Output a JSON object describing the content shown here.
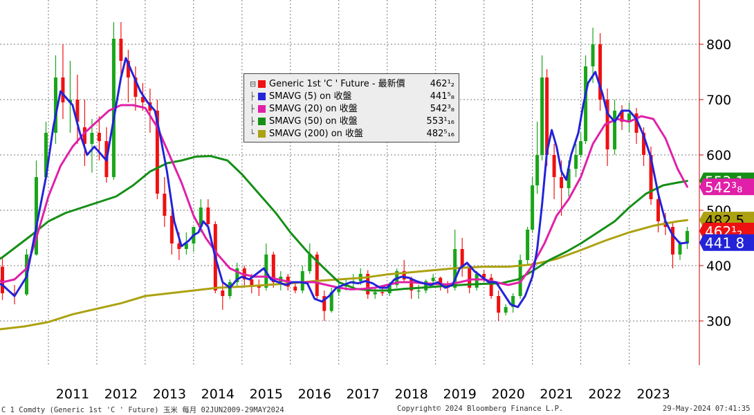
{
  "chart_data": {
    "type": "candlestick",
    "title": "",
    "xlabel": "",
    "ylabel": "",
    "xlim": [
      2010.0,
      2024.45
    ],
    "ylim": [
      220,
      880
    ],
    "x_ticks": [
      "2011",
      "2012",
      "2013",
      "2014",
      "2015",
      "2016",
      "2017",
      "2018",
      "2019",
      "2020",
      "2021",
      "2022",
      "2023"
    ],
    "y_ticks": [
      300,
      400,
      500,
      600,
      700,
      800
    ],
    "grid": true,
    "legend_position": "top-center",
    "colors": {
      "up": "#1aa51a",
      "down": "#ee1111",
      "background": "#ffffff",
      "grid": "#777777"
    },
    "candles": [
      [
        2009.45,
        380,
        395,
        345,
        360
      ],
      [
        2009.75,
        372,
        410,
        350,
        398
      ],
      [
        2010.05,
        398,
        415,
        338,
        350
      ],
      [
        2010.3,
        350,
        365,
        330,
        348
      ],
      [
        2010.55,
        348,
        430,
        345,
        420
      ],
      [
        2010.75,
        420,
        590,
        418,
        560
      ],
      [
        2010.95,
        560,
        660,
        555,
        640
      ],
      [
        2011.15,
        640,
        780,
        620,
        740
      ],
      [
        2011.3,
        740,
        800,
        665,
        695
      ],
      [
        2011.45,
        695,
        770,
        640,
        700
      ],
      [
        2011.6,
        700,
        745,
        620,
        660
      ],
      [
        2011.75,
        650,
        700,
        580,
        620
      ],
      [
        2011.9,
        620,
        665,
        568,
        640
      ],
      [
        2012.05,
        640,
        670,
        590,
        625
      ],
      [
        2012.2,
        625,
        650,
        550,
        560
      ],
      [
        2012.35,
        560,
        840,
        555,
        810
      ],
      [
        2012.5,
        810,
        840,
        745,
        770
      ],
      [
        2012.65,
        770,
        790,
        695,
        740
      ],
      [
        2012.8,
        740,
        760,
        680,
        705
      ],
      [
        2012.95,
        705,
        730,
        680,
        695
      ],
      [
        2013.1,
        695,
        720,
        640,
        680
      ],
      [
        2013.25,
        680,
        700,
        520,
        530
      ],
      [
        2013.4,
        530,
        560,
        470,
        490
      ],
      [
        2013.55,
        490,
        500,
        420,
        440
      ],
      [
        2013.7,
        440,
        460,
        410,
        430
      ],
      [
        2013.85,
        430,
        460,
        420,
        440
      ],
      [
        2014.0,
        440,
        470,
        425,
        470
      ],
      [
        2014.15,
        470,
        520,
        460,
        505
      ],
      [
        2014.3,
        505,
        520,
        465,
        475
      ],
      [
        2014.45,
        475,
        480,
        350,
        355
      ],
      [
        2014.6,
        355,
        370,
        320,
        345
      ],
      [
        2014.75,
        345,
        375,
        340,
        370
      ],
      [
        2014.9,
        370,
        405,
        360,
        395
      ],
      [
        2015.05,
        395,
        400,
        360,
        375
      ],
      [
        2015.2,
        375,
        385,
        350,
        365
      ],
      [
        2015.35,
        365,
        375,
        345,
        360
      ],
      [
        2015.5,
        360,
        440,
        355,
        420
      ],
      [
        2015.65,
        420,
        425,
        360,
        370
      ],
      [
        2015.8,
        370,
        390,
        355,
        380
      ],
      [
        2015.95,
        380,
        385,
        355,
        362
      ],
      [
        2016.1,
        362,
        370,
        350,
        355
      ],
      [
        2016.25,
        355,
        400,
        350,
        390
      ],
      [
        2016.4,
        390,
        440,
        385,
        420
      ],
      [
        2016.55,
        420,
        425,
        340,
        345
      ],
      [
        2016.7,
        345,
        355,
        300,
        318
      ],
      [
        2016.85,
        318,
        360,
        315,
        352
      ],
      [
        2017.0,
        352,
        370,
        345,
        362
      ],
      [
        2017.15,
        362,
        375,
        355,
        368
      ],
      [
        2017.3,
        368,
        385,
        360,
        372
      ],
      [
        2017.45,
        372,
        395,
        365,
        385
      ],
      [
        2017.6,
        385,
        392,
        340,
        348
      ],
      [
        2017.75,
        348,
        360,
        340,
        352
      ],
      [
        2017.9,
        352,
        360,
        345,
        350
      ],
      [
        2018.05,
        350,
        370,
        345,
        365
      ],
      [
        2018.2,
        365,
        395,
        360,
        390
      ],
      [
        2018.35,
        390,
        410,
        370,
        375
      ],
      [
        2018.5,
        375,
        380,
        340,
        355
      ],
      [
        2018.65,
        355,
        365,
        340,
        355
      ],
      [
        2018.8,
        355,
        375,
        350,
        372
      ],
      [
        2018.95,
        372,
        385,
        360,
        378
      ],
      [
        2019.1,
        378,
        380,
        355,
        365
      ],
      [
        2019.25,
        365,
        372,
        350,
        360
      ],
      [
        2019.4,
        360,
        465,
        355,
        430
      ],
      [
        2019.55,
        430,
        450,
        380,
        395
      ],
      [
        2019.7,
        395,
        400,
        350,
        360
      ],
      [
        2019.85,
        360,
        390,
        355,
        385
      ],
      [
        2020.0,
        385,
        392,
        370,
        378
      ],
      [
        2020.15,
        378,
        385,
        340,
        345
      ],
      [
        2020.3,
        345,
        355,
        300,
        315
      ],
      [
        2020.45,
        315,
        330,
        310,
        325
      ],
      [
        2020.6,
        325,
        350,
        315,
        345
      ],
      [
        2020.75,
        345,
        420,
        340,
        410
      ],
      [
        2020.9,
        410,
        470,
        400,
        465
      ],
      [
        2021.0,
        465,
        560,
        460,
        545
      ],
      [
        2021.1,
        545,
        660,
        530,
        600
      ],
      [
        2021.2,
        600,
        780,
        590,
        740
      ],
      [
        2021.3,
        740,
        755,
        580,
        600
      ],
      [
        2021.45,
        600,
        620,
        520,
        560
      ],
      [
        2021.6,
        560,
        590,
        490,
        540
      ],
      [
        2021.75,
        540,
        590,
        525,
        575
      ],
      [
        2021.9,
        575,
        620,
        560,
        600
      ],
      [
        2022.0,
        600,
        640,
        595,
        625
      ],
      [
        2022.1,
        625,
        780,
        620,
        760
      ],
      [
        2022.25,
        760,
        830,
        730,
        800
      ],
      [
        2022.4,
        800,
        820,
        680,
        700
      ],
      [
        2022.55,
        700,
        720,
        580,
        610
      ],
      [
        2022.7,
        610,
        700,
        600,
        680
      ],
      [
        2022.85,
        680,
        690,
        645,
        660
      ],
      [
        2023.0,
        660,
        695,
        640,
        675
      ],
      [
        2023.15,
        675,
        685,
        620,
        640
      ],
      [
        2023.3,
        640,
        650,
        580,
        600
      ],
      [
        2023.45,
        600,
        615,
        510,
        520
      ],
      [
        2023.6,
        520,
        540,
        460,
        480
      ],
      [
        2023.75,
        480,
        495,
        455,
        470
      ],
      [
        2023.9,
        470,
        480,
        395,
        420
      ],
      [
        2024.05,
        420,
        445,
        410,
        440
      ],
      [
        2024.2,
        440,
        470,
        430,
        462.5
      ]
    ],
    "series": [
      {
        "name": "SMAVG (5)  on 收盤",
        "color": "#2323d8",
        "x": [
          2009.45,
          2009.75,
          2010.05,
          2010.3,
          2010.55,
          2010.75,
          2010.95,
          2011.1,
          2011.25,
          2011.35,
          2011.5,
          2011.65,
          2011.8,
          2011.95,
          2012.1,
          2012.2,
          2012.35,
          2012.5,
          2012.6,
          2012.75,
          2012.9,
          2013.05,
          2013.2,
          2013.3,
          2013.45,
          2013.6,
          2013.75,
          2013.9,
          2014.0,
          2014.1,
          2014.2,
          2014.3,
          2014.45,
          2014.6,
          2014.75,
          2014.9,
          2015.0,
          2015.15,
          2015.3,
          2015.45,
          2015.6,
          2015.75,
          2015.9,
          2016.05,
          2016.2,
          2016.35,
          2016.5,
          2016.65,
          2016.8,
          2016.95,
          2017.1,
          2017.25,
          2017.4,
          2017.55,
          2017.7,
          2017.85,
          2018.0,
          2018.15,
          2018.3,
          2018.45,
          2018.6,
          2018.75,
          2018.9,
          2019.05,
          2019.2,
          2019.35,
          2019.5,
          2019.65,
          2019.8,
          2019.95,
          2020.1,
          2020.25,
          2020.4,
          2020.55,
          2020.7,
          2020.85,
          2021.0,
          2021.1,
          2021.2,
          2021.3,
          2021.4,
          2021.5,
          2021.6,
          2021.7,
          2021.8,
          2021.95,
          2022.05,
          2022.15,
          2022.3,
          2022.45,
          2022.55,
          2022.7,
          2022.85,
          2023.0,
          2023.15,
          2023.3,
          2023.45,
          2023.6,
          2023.75,
          2023.9,
          2024.05,
          2024.2
        ],
        "values": [
          395,
          375,
          365,
          345,
          380,
          470,
          560,
          650,
          715,
          705,
          690,
          640,
          600,
          615,
          600,
          590,
          665,
          740,
          775,
          745,
          715,
          695,
          680,
          640,
          570,
          480,
          435,
          445,
          455,
          460,
          480,
          470,
          415,
          370,
          360,
          375,
          380,
          375,
          385,
          395,
          375,
          370,
          365,
          370,
          370,
          368,
          340,
          335,
          345,
          360,
          365,
          370,
          368,
          372,
          368,
          360,
          360,
          375,
          380,
          378,
          372,
          368,
          365,
          370,
          360,
          365,
          395,
          405,
          390,
          380,
          370,
          370,
          350,
          330,
          325,
          345,
          380,
          430,
          510,
          605,
          645,
          615,
          570,
          555,
          600,
          640,
          690,
          730,
          750,
          710,
          675,
          660,
          680,
          680,
          665,
          635,
          595,
          530,
          480,
          455,
          440,
          441.6
        ]
      },
      {
        "name": "SMAVG (20)  on 收盤",
        "color": "#e020a8",
        "x": [
          2009.45,
          2009.75,
          2010.05,
          2010.3,
          2010.55,
          2010.75,
          2011.0,
          2011.25,
          2011.5,
          2011.75,
          2012.0,
          2012.25,
          2012.5,
          2012.75,
          2013.0,
          2013.25,
          2013.5,
          2013.75,
          2014.0,
          2014.25,
          2014.5,
          2014.75,
          2015.0,
          2015.25,
          2015.5,
          2015.75,
          2016.0,
          2016.25,
          2016.5,
          2016.75,
          2017.0,
          2017.25,
          2017.5,
          2017.75,
          2018.0,
          2018.25,
          2018.5,
          2018.75,
          2019.0,
          2019.25,
          2019.5,
          2019.75,
          2020.0,
          2020.25,
          2020.5,
          2020.75,
          2021.0,
          2021.25,
          2021.5,
          2021.75,
          2022.0,
          2022.25,
          2022.5,
          2022.75,
          2023.0,
          2023.25,
          2023.5,
          2023.75,
          2024.0,
          2024.2
        ],
        "values": [
          400,
          385,
          370,
          375,
          395,
          450,
          525,
          580,
          615,
          640,
          660,
          680,
          690,
          690,
          685,
          650,
          600,
          550,
          490,
          450,
          420,
          395,
          385,
          380,
          380,
          375,
          370,
          370,
          370,
          365,
          360,
          357,
          358,
          360,
          365,
          370,
          370,
          368,
          367,
          366,
          370,
          375,
          375,
          370,
          365,
          370,
          400,
          440,
          490,
          520,
          560,
          620,
          655,
          665,
          660,
          670,
          665,
          630,
          575,
          542.4
        ]
      },
      {
        "name": "SMAVG (50)  on 收盤",
        "color": "#158f15",
        "x": [
          2009.45,
          2009.75,
          2010.05,
          2010.35,
          2010.65,
          2011.0,
          2011.35,
          2011.7,
          2012.05,
          2012.4,
          2012.75,
          2013.1,
          2013.45,
          2013.75,
          2014.05,
          2014.35,
          2014.7,
          2015.0,
          2015.35,
          2015.7,
          2016.0,
          2016.35,
          2016.7,
          2017.0,
          2017.35,
          2017.7,
          2018.0,
          2018.35,
          2018.7,
          2019.0,
          2019.35,
          2019.7,
          2020.0,
          2020.35,
          2020.7,
          2021.0,
          2021.35,
          2021.7,
          2022.0,
          2022.35,
          2022.7,
          2023.0,
          2023.35,
          2023.7,
          2024.0,
          2024.2
        ],
        "values": [
          390,
          400,
          415,
          435,
          455,
          480,
          495,
          505,
          515,
          525,
          545,
          570,
          585,
          590,
          597,
          598,
          590,
          565,
          530,
          495,
          460,
          425,
          395,
          370,
          358,
          355,
          355,
          358,
          360,
          362,
          364,
          366,
          367,
          368,
          375,
          390,
          410,
          425,
          440,
          460,
          480,
          505,
          530,
          545,
          550,
          553.06
        ]
      },
      {
        "name": "SMAVG (200)  on 收盤",
        "color": "#aca111",
        "x": [
          2009.45,
          2010.0,
          2010.5,
          2011.0,
          2011.5,
          2012.0,
          2012.5,
          2013.0,
          2013.5,
          2014.0,
          2014.5,
          2015.0,
          2015.5,
          2016.0,
          2016.5,
          2017.0,
          2017.5,
          2018.0,
          2018.5,
          2019.0,
          2019.5,
          2020.0,
          2020.5,
          2021.0,
          2021.5,
          2022.0,
          2022.5,
          2023.0,
          2023.5,
          2024.0,
          2024.2
        ],
        "values": [
          280,
          285,
          290,
          298,
          312,
          322,
          332,
          345,
          350,
          355,
          360,
          362,
          365,
          368,
          372,
          375,
          378,
          384,
          388,
          392,
          396,
          398,
          398,
          402,
          412,
          428,
          445,
          460,
          472,
          480,
          482.3
        ]
      }
    ],
    "last_value_tags": [
      {
        "value": 553.1,
        "text": "553 1",
        "bg": "#158f15",
        "fg": "#ffffff"
      },
      {
        "value": 542.4,
        "text": "542³₈",
        "bg": "#e020a8",
        "fg": "#ffffff"
      },
      {
        "value": 482.3,
        "text": "482 5",
        "bg": "#aca111",
        "fg": "#000000"
      },
      {
        "value": 462.5,
        "text": "462¹₂",
        "bg": "#ee1111",
        "fg": "#ffffff"
      },
      {
        "value": 441.6,
        "text": "441 8",
        "bg": "#2323d8",
        "fg": "#ffffff"
      }
    ]
  },
  "legend": {
    "items": [
      {
        "label": "Generic 1st 'C ' Future - 最新價",
        "value": "462¹₂",
        "color": "#ee1111"
      },
      {
        "label": "SMAVG (5)  on 收盤",
        "value": "441⁵₈",
        "color": "#2323d8"
      },
      {
        "label": "SMAVG (20)  on 收盤",
        "value": "542³₈",
        "color": "#e020a8"
      },
      {
        "label": "SMAVG (50)  on 收盤",
        "value": "553¹₁₆",
        "color": "#158f15"
      },
      {
        "label": "SMAVG (200)  on 收盤",
        "value": "482⁵₁₆",
        "color": "#aca111"
      }
    ]
  },
  "footer": {
    "left": "C 1 Comdty (Generic 1st 'C ' Future) 玉米  每月 02JUN2009-29MAY2024",
    "center": "Copyright© 2024 Bloomberg Finance L.P.",
    "right": "29-May-2024 07:41:35"
  }
}
